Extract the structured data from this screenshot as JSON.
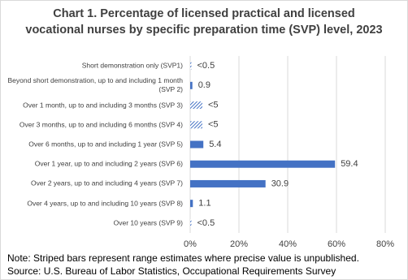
{
  "chart_data": {
    "type": "hbar",
    "title": "Chart 1. Percentage of licensed practical and licensed vocational nurses by specific preparation time (SVP) level, 2023",
    "categories": [
      "Short demonstration only (SVP1)",
      "Beyond short demonstration, up to and including 1 month (SVP 2)",
      "Over 1 month, up to and including 3 months (SVP 3)",
      "Over 3 months, up to and including 6 months (SVP 4)",
      "Over 6 months, up to and including 1 year (SVP 5)",
      "Over 1 year, up to and including 2 years (SVP 6)",
      "Over 2 years, up to and including 4 years (SVP 7)",
      "Over 4 years, up to and including 10 years (SVP 8)",
      "Over 10 years (SVP 9)"
    ],
    "values": [
      0.5,
      0.9,
      5,
      5,
      5.4,
      59.4,
      30.9,
      1.1,
      0.5
    ],
    "value_labels": [
      "<0.5",
      "0.9",
      "<5",
      "<5",
      "5.4",
      "59.4",
      "30.9",
      "1.1",
      "<0.5"
    ],
    "range_estimate": [
      true,
      false,
      true,
      true,
      false,
      false,
      false,
      false,
      true
    ],
    "color": "#4472c4",
    "xlim": [
      0,
      80
    ],
    "xticks": [
      {
        "value": 0,
        "label": "0%"
      },
      {
        "value": 20,
        "label": "20%"
      },
      {
        "value": 40,
        "label": "40%"
      },
      {
        "value": 60,
        "label": "60%"
      },
      {
        "value": 80,
        "label": "80%"
      }
    ],
    "grid": true,
    "note": "Note: Striped bars represent range estimates where precise value is unpublished.",
    "source": "Source: U.S. Bureau of Labor Statistics, Occupational Requirements Survey"
  }
}
